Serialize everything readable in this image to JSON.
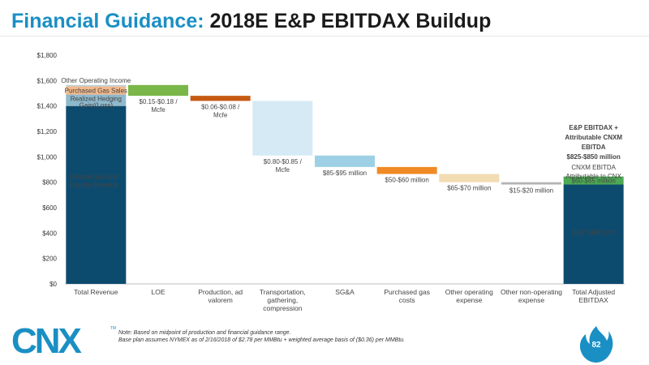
{
  "header": {
    "title_accent": "Financial Guidance:",
    "title_rest": "2018E E&P EBITDAX Buildup"
  },
  "footer": {
    "note_line1": "Note: Based on midpoint of production and financial guidance range.",
    "note_line2": "Base plan assumes NYMEX as of 2/16/2018 of $2.78 per MMBtu + weighted average basis of ($0.36) per MMBtu.",
    "logo_text": "CNX",
    "logo_tm": "TM",
    "page_number": "82"
  },
  "colors": {
    "brand": "#1a8fc4",
    "natural_gas": "#0d4b6e",
    "hedging": "#8fb9cc",
    "purchased_gas_sales": "#f2b98c",
    "other_operating_income": "#b9cfdc",
    "loe": "#7ab648",
    "production": "#c55a11",
    "transportation": "#d6eaf5",
    "sga": "#9dd0e4",
    "purchased_gas_costs": "#f08a24",
    "other_operating_expense": "#f2dcb3",
    "other_non_operating": "#b3b3b3",
    "cnxm_ebitda": "#4caa54",
    "ep_ebitdax": "#0d4b6e"
  },
  "chart_data": {
    "type": "bar",
    "subtype": "waterfall",
    "ylim": [
      0,
      1800
    ],
    "yticks": [
      0,
      200,
      400,
      600,
      800,
      1000,
      1200,
      1400,
      1600,
      1800
    ],
    "ytick_labels": [
      "$0",
      "$200",
      "$400",
      "$600",
      "$800",
      "$1,000",
      "$1,200",
      "$1,400",
      "$1,600",
      "$1,800"
    ],
    "categories": [
      [
        "Total Revenue"
      ],
      [
        "LOE"
      ],
      [
        "Production, ad",
        "valorem"
      ],
      [
        "Transportation,",
        "gathering,",
        "compression"
      ],
      [
        "SG&A"
      ],
      [
        "Purchased gas",
        "costs"
      ],
      [
        "Other operating",
        "expense"
      ],
      [
        "Other non-operating",
        "expense"
      ],
      [
        "Total Adjusted",
        "EBITDAX"
      ]
    ],
    "segments": [
      {
        "cat": 0,
        "low": 0,
        "high": 1400,
        "color_key": "natural_gas",
        "label": [
          "Natural Gas And",
          "Liquids Revenue"
        ],
        "label_pos": "inside-left",
        "label_color": "#ffffff"
      },
      {
        "cat": 0,
        "low": 1400,
        "high": 1490,
        "color_key": "hedging",
        "label": [
          "Realized Hedging",
          "Gain/(Loss)"
        ],
        "label_pos": "inside-center",
        "label_color": "#ffffff"
      },
      {
        "cat": 0,
        "low": 1490,
        "high": 1555,
        "color_key": "purchased_gas_sales",
        "label": [
          "Purchased Gas Sales"
        ],
        "label_pos": "inside-center",
        "label_color": "#444444"
      },
      {
        "cat": 0,
        "low": 1555,
        "high": 1565,
        "color_key": "other_operating_income",
        "label": [
          "Other Operating Income"
        ],
        "label_pos": "above",
        "label_color": "#333333"
      },
      {
        "cat": 1,
        "low": 1480,
        "high": 1565,
        "color_key": "loe",
        "label": [
          "$0.15-$0.18 /",
          "Mcfe"
        ],
        "label_pos": "below",
        "label_color": "#444444"
      },
      {
        "cat": 2,
        "low": 1440,
        "high": 1480,
        "color_key": "production",
        "label": [
          "$0.06-$0.08 /",
          "Mcfe"
        ],
        "label_pos": "below",
        "label_color": "#444444"
      },
      {
        "cat": 3,
        "low": 1010,
        "high": 1440,
        "color_key": "transportation",
        "label": [
          "$0.80-$0.85 /",
          "Mcfe"
        ],
        "label_pos": "below",
        "label_color": "#444444"
      },
      {
        "cat": 4,
        "low": 920,
        "high": 1010,
        "color_key": "sga",
        "label": [
          "$85-$95 million"
        ],
        "label_pos": "below",
        "label_color": "#444444"
      },
      {
        "cat": 5,
        "low": 865,
        "high": 920,
        "color_key": "purchased_gas_costs",
        "label": [
          "$50-$60 million"
        ],
        "label_pos": "below",
        "label_color": "#444444"
      },
      {
        "cat": 6,
        "low": 800,
        "high": 865,
        "color_key": "other_operating_expense",
        "label": [
          "$65-$70 million"
        ],
        "label_pos": "below",
        "label_color": "#444444"
      },
      {
        "cat": 7,
        "low": 782,
        "high": 800,
        "color_key": "other_non_operating",
        "label": [
          "$15-$20 million"
        ],
        "label_pos": "below",
        "label_color": "#444444"
      },
      {
        "cat": 8,
        "low": 0,
        "high": 782,
        "color_key": "ep_ebitdax",
        "label": [
          "E&P EBITDAX"
        ],
        "label_pos": "inside-center-low",
        "label_color": "#ffffff"
      },
      {
        "cat": 8,
        "low": 782,
        "high": 845,
        "color_key": "cnxm_ebitda",
        "label": [
          "$60-$65 million"
        ],
        "label_pos": "inside-center",
        "label_color": "#ffffff"
      }
    ],
    "annotation": {
      "bold_lines": [
        "E&P EBITDAX +",
        "Attributable CNXM",
        "EBITDA",
        "$825-$850 million"
      ],
      "normal_lines": [
        "CNXM EBITDA",
        "Attributable to CNX"
      ]
    }
  }
}
